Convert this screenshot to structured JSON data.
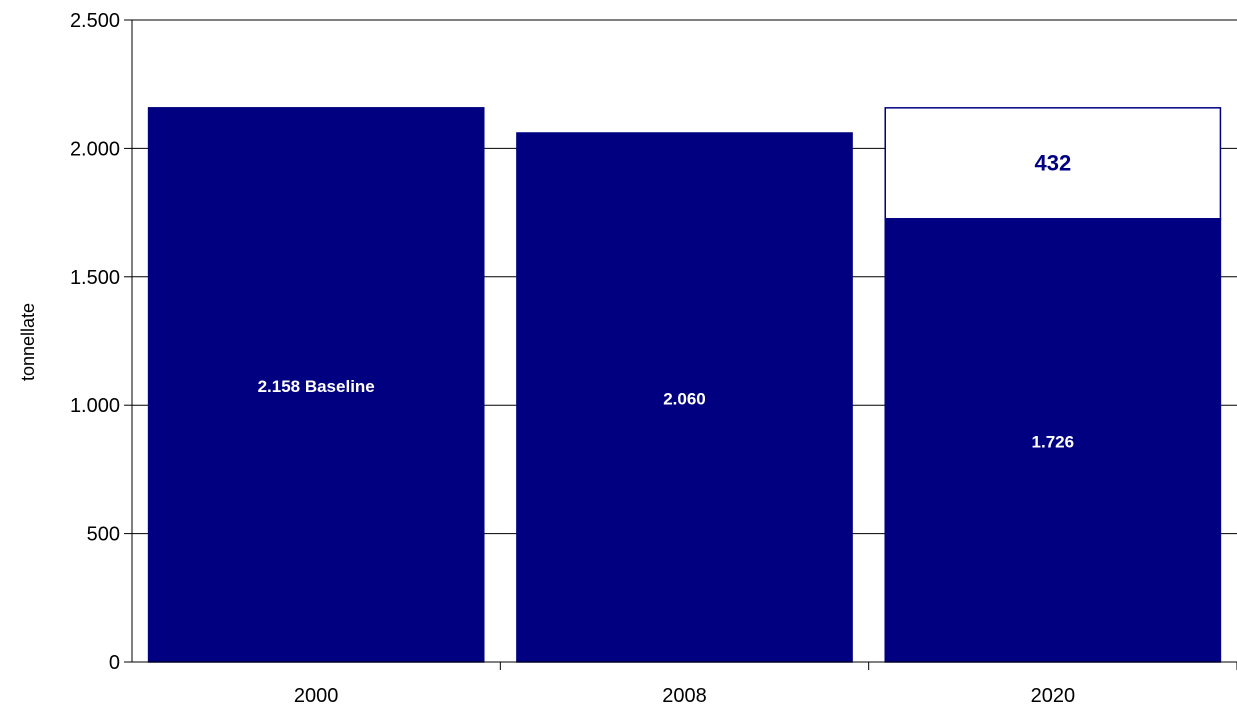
{
  "chart_data": {
    "type": "bar",
    "stacked": true,
    "title": "",
    "xlabel": "",
    "ylabel": "tonnellate",
    "ylim": [
      0,
      2500
    ],
    "yticks": [
      0,
      500,
      1000,
      1500,
      2000,
      2500
    ],
    "ytick_labels": [
      "0",
      "500",
      "1.000",
      "1.500",
      "2.000",
      "2.500"
    ],
    "categories": [
      "2000",
      "2008",
      "2020"
    ],
    "grid": true,
    "legend": "none",
    "series": [
      {
        "values": [
          2158,
          2060,
          1726
        ],
        "color": "#000080",
        "labels": [
          "2.158 Baseline",
          "2.060",
          "1.726"
        ]
      },
      {
        "values": [
          0,
          0,
          432
        ],
        "color": "#ffffff",
        "labels": [
          "",
          "",
          "432"
        ]
      }
    ]
  }
}
